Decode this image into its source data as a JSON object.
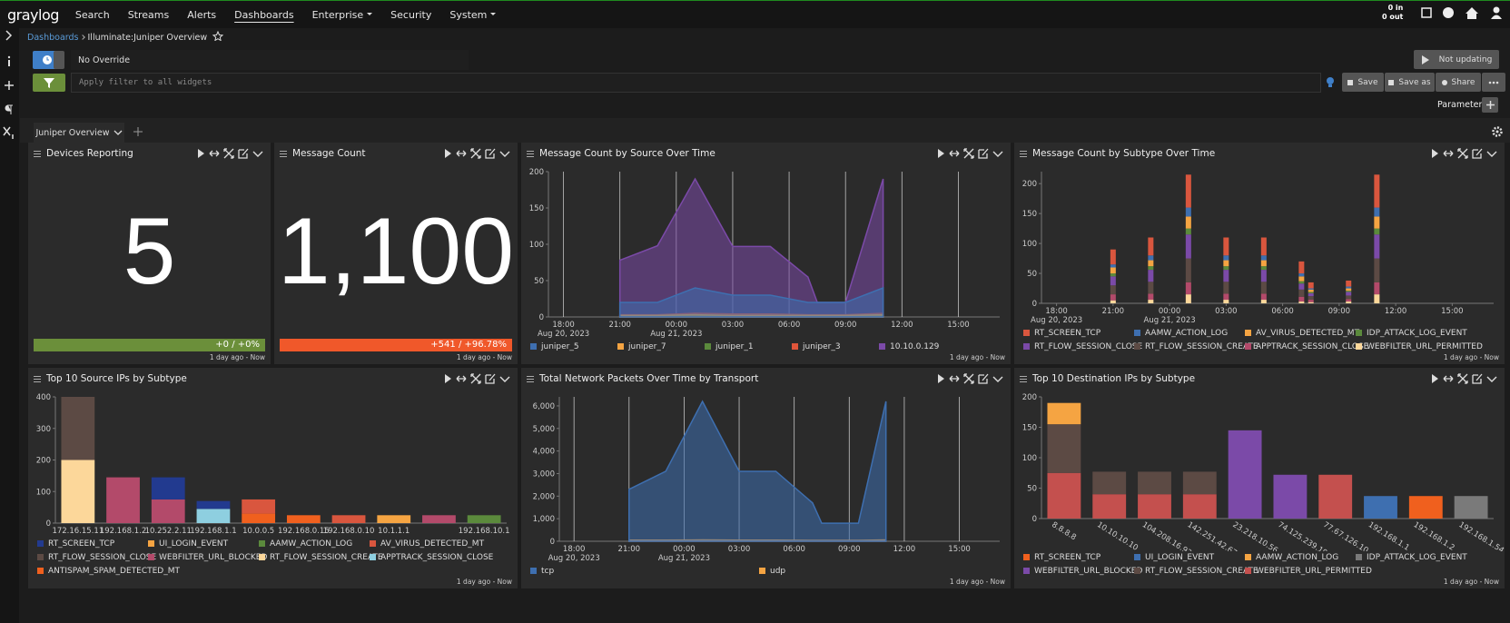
{
  "nav": {
    "logo": "graylog",
    "items": [
      "Search",
      "Streams",
      "Alerts",
      "Dashboards",
      "Enterprise",
      "Security",
      "System"
    ],
    "active": 3,
    "dropdown_items": [
      4,
      6
    ],
    "throughput_in": "0 in",
    "throughput_out": "0 out"
  },
  "breadcrumb": [
    "Dashboards",
    "Illuminate:Juniper Overview"
  ],
  "toolbar": {
    "override": "No Override",
    "filter_placeholder": "Apply filter to all widgets",
    "refresh": "Not updating",
    "save": "Save",
    "save_as": "Save as",
    "share": "Share",
    "parameters": "Parameters"
  },
  "tabs": [
    "Juniper Overview"
  ],
  "widgets": [
    {
      "title": "Devices Reporting",
      "type": "number",
      "value": 5,
      "trend": "+0 / +0%",
      "trend_color": "#6b8f3a",
      "footer": "1 day ago - Now"
    },
    {
      "title": "Message Count",
      "type": "number",
      "value": 1100,
      "value_label": "1,100",
      "trend": "+541 / +96.78%",
      "trend_color": "#f0582a",
      "footer": "1 day ago - Now"
    },
    {
      "title": "Message Count by Source Over Time",
      "type": "area",
      "grid": true,
      "x": [
        3,
        5,
        7,
        9,
        11,
        13,
        13.5,
        15,
        17
      ],
      "xlim": [
        -0.8,
        23.2
      ],
      "xticks": [
        {
          "value": 0,
          "label": "18:00"
        },
        {
          "value": 3,
          "label": "21:00"
        },
        {
          "value": 6,
          "label": "00:00"
        },
        {
          "value": 9,
          "label": "03:00"
        },
        {
          "value": 12,
          "label": "06:00"
        },
        {
          "value": 15,
          "label": "09:00"
        },
        {
          "value": 18,
          "label": "12:00"
        },
        {
          "value": 21,
          "label": "15:00"
        }
      ],
      "x_sublabels": [
        {
          "value": 0,
          "label": "Aug 20, 2023"
        },
        {
          "value": 6,
          "label": "Aug 21, 2023"
        }
      ],
      "ylim": [
        0,
        200
      ],
      "yticks": [
        0,
        50,
        100,
        150,
        200
      ],
      "series": [
        {
          "name": "juniper_5",
          "color": "#3e6fb0",
          "values": [
            20,
            20,
            40,
            30,
            30,
            20,
            20,
            20,
            40
          ]
        },
        {
          "name": "juniper_7",
          "color": "#f5a442",
          "values": [
            2,
            2,
            3,
            2,
            2,
            2,
            2,
            2,
            3
          ]
        },
        {
          "name": "juniper_1",
          "color": "#5b8a3c",
          "values": [
            1,
            1,
            1,
            1,
            1,
            1,
            1,
            1,
            1
          ]
        },
        {
          "name": "juniper_3",
          "color": "#e0553a",
          "values": [
            3,
            3,
            5,
            4,
            4,
            3,
            3,
            3,
            5
          ]
        },
        {
          "name": "10.10.0.129",
          "color": "#7b4aa8",
          "values": [
            78,
            98,
            190,
            97,
            97,
            55,
            20,
            20,
            190
          ]
        }
      ],
      "footer": "1 day ago - Now"
    },
    {
      "title": "Message Count by Subtype Over Time",
      "type": "time_bar",
      "grid": false,
      "x": [
        3,
        5,
        7,
        9,
        11,
        13,
        13.5,
        15.5,
        17
      ],
      "xlim": [
        -0.8,
        23.2
      ],
      "xticks": [
        {
          "value": 0,
          "label": "18:00"
        },
        {
          "value": 3,
          "label": "21:00"
        },
        {
          "value": 6,
          "label": "00:00"
        },
        {
          "value": 9,
          "label": "03:00"
        },
        {
          "value": 12,
          "label": "06:00"
        },
        {
          "value": 15,
          "label": "09:00"
        },
        {
          "value": 18,
          "label": "12:00"
        },
        {
          "value": 21,
          "label": "15:00"
        }
      ],
      "x_sublabels": [
        {
          "value": 0,
          "label": "Aug 20, 2023"
        },
        {
          "value": 6,
          "label": "Aug 21, 2023"
        }
      ],
      "ylim": [
        0,
        220
      ],
      "yticks": [
        0,
        50,
        100,
        150,
        200
      ],
      "series": [
        {
          "name": "RT_SCREEN_TCP",
          "color": "#d9563e",
          "values": [
            25,
            30,
            55,
            30,
            30,
            20,
            10,
            10,
            55
          ]
        },
        {
          "name": "AAMW_ACTION_LOG",
          "color": "#3e6fb0",
          "values": [
            5,
            8,
            15,
            8,
            8,
            5,
            2,
            3,
            15
          ]
        },
        {
          "name": "AV_VIRUS_DETECTED_MT",
          "color": "#f5a442",
          "values": [
            10,
            10,
            20,
            10,
            10,
            8,
            4,
            4,
            20
          ]
        },
        {
          "name": "IDP_ATTACK_LOG_EVENT",
          "color": "#5b8a3c",
          "values": [
            5,
            6,
            10,
            6,
            6,
            4,
            2,
            2,
            10
          ]
        },
        {
          "name": "RT_FLOW_SESSION_CLOSE",
          "color": "#7b4aa8",
          "values": [
            15,
            20,
            40,
            20,
            20,
            10,
            5,
            6,
            40
          ]
        },
        {
          "name": "RT_FLOW_SESSION_CREATE",
          "color": "#5c4a44",
          "values": [
            15,
            20,
            40,
            20,
            20,
            12,
            6,
            6,
            40
          ]
        },
        {
          "name": "APPTRACK_SESSION_CLOSE",
          "color": "#b34a6a",
          "values": [
            10,
            10,
            20,
            10,
            10,
            8,
            4,
            4,
            20
          ]
        },
        {
          "name": "WEBFILTER_URL_PERMITTED",
          "color": "#fcd79a",
          "values": [
            5,
            6,
            15,
            6,
            6,
            3,
            2,
            3,
            15
          ]
        }
      ],
      "footer": "1 day ago - Now"
    },
    {
      "title": "Top 10 Source IPs by Subtype",
      "type": "bar",
      "rotate_labels": false,
      "categories": [
        "172.16.15.11",
        "192.168.1.2",
        "10.252.2.11",
        "192.168.1.1",
        "10.0.0.5",
        "192.168.0.15",
        "192.168.0.10",
        "10.1.1.1",
        null,
        "192.168.10.1"
      ],
      "ylim": [
        0,
        400
      ],
      "yticks": [
        0,
        100,
        200,
        300,
        400
      ],
      "series": [
        {
          "name": "RT_SCREEN_TCP",
          "color": "#223a8f",
          "values": [
            0,
            0,
            70,
            25,
            0,
            0,
            0,
            0,
            0,
            0
          ]
        },
        {
          "name": "UI_LOGIN_EVENT",
          "color": "#f5a442",
          "values": [
            0,
            0,
            0,
            0,
            0,
            0,
            0,
            25,
            0,
            0
          ]
        },
        {
          "name": "AAMW_ACTION_LOG",
          "color": "#5b8a3c",
          "values": [
            0,
            0,
            0,
            0,
            0,
            0,
            0,
            0,
            0,
            25
          ]
        },
        {
          "name": "AV_VIRUS_DETECTED_MT",
          "color": "#d9563e",
          "values": [
            0,
            0,
            0,
            0,
            45,
            0,
            25,
            0,
            0,
            0
          ]
        },
        {
          "name": "RT_FLOW_SESSION_CLOSE",
          "color": "#5c4a44",
          "values": [
            200,
            0,
            0,
            0,
            0,
            0,
            0,
            0,
            0,
            0
          ]
        },
        {
          "name": "WEBFILTER_URL_BLOCKED",
          "color": "#b34a6a",
          "values": [
            0,
            145,
            75,
            0,
            0,
            0,
            0,
            0,
            25,
            0
          ]
        },
        {
          "name": "RT_FLOW_SESSION_CREATE",
          "color": "#fcd79a",
          "values": [
            200,
            0,
            0,
            0,
            0,
            0,
            0,
            0,
            0,
            0
          ]
        },
        {
          "name": "APPTRACK_SESSION_CLOSE",
          "color": "#8ecfe0",
          "values": [
            0,
            0,
            0,
            45,
            0,
            0,
            0,
            0,
            0,
            0
          ]
        },
        {
          "name": "ANTISPAM_SPAM_DETECTED_MT",
          "color": "#f0601e",
          "values": [
            0,
            0,
            0,
            0,
            30,
            25,
            0,
            0,
            0,
            0
          ]
        }
      ],
      "footer": "1 day ago - Now"
    },
    {
      "title": "Total Network Packets Over Time by Transport",
      "type": "area",
      "grid": true,
      "x": [
        3,
        5,
        7,
        9,
        11,
        13,
        13.5,
        15.5,
        17
      ],
      "xlim": [
        -0.8,
        23.2
      ],
      "xticks": [
        {
          "value": 0,
          "label": "18:00"
        },
        {
          "value": 3,
          "label": "21:00"
        },
        {
          "value": 6,
          "label": "00:00"
        },
        {
          "value": 9,
          "label": "03:00"
        },
        {
          "value": 12,
          "label": "06:00"
        },
        {
          "value": 15,
          "label": "09:00"
        },
        {
          "value": 18,
          "label": "12:00"
        },
        {
          "value": 21,
          "label": "15:00"
        }
      ],
      "x_sublabels": [
        {
          "value": 0,
          "label": "Aug 20, 2023"
        },
        {
          "value": 6,
          "label": "Aug 21, 2023"
        }
      ],
      "ylim": [
        0,
        6400
      ],
      "yticks": [
        0,
        {
          "value": 1000,
          "label": "1,000"
        },
        {
          "value": 2000,
          "label": "2,000"
        },
        {
          "value": 3000,
          "label": "3,000"
        },
        {
          "value": 4000,
          "label": "4,000"
        },
        {
          "value": 5000,
          "label": "5,000"
        },
        {
          "value": 6000,
          "label": "6,000"
        }
      ],
      "series": [
        {
          "name": "tcp",
          "color": "#3e6fb0",
          "values": [
            2300,
            3100,
            6200,
            3100,
            3100,
            1700,
            800,
            800,
            6200
          ]
        },
        {
          "name": "udp",
          "color": "#f5a442",
          "values": [
            50,
            50,
            60,
            50,
            50,
            40,
            40,
            40,
            60
          ]
        }
      ],
      "footer": "1 day ago - Now"
    },
    {
      "title": "Top 10 Destination IPs by Subtype",
      "type": "bar",
      "rotate_labels": true,
      "categories": [
        "8.8.8.8",
        "10.10.10.10",
        "104.208.16.93",
        "142.251.42.67",
        "23.218.10.56",
        "74.125.239.195",
        "77.67.126.10",
        "192.168.1.1",
        "192.168.1.2",
        "192.168.1.54"
      ],
      "ylim": [
        0,
        200
      ],
      "yticks": [
        0,
        50,
        100,
        150,
        200
      ],
      "series": [
        {
          "name": "RT_SCREEN_TCP",
          "color": "#f0601e",
          "values": [
            0,
            0,
            0,
            0,
            0,
            0,
            0,
            0,
            37,
            0
          ]
        },
        {
          "name": "UI_LOGIN_EVENT",
          "color": "#3e6fb0",
          "values": [
            0,
            0,
            0,
            0,
            0,
            0,
            0,
            37,
            0,
            0
          ]
        },
        {
          "name": "AAMW_ACTION_LOG",
          "color": "#f5a442",
          "values": [
            35,
            0,
            0,
            0,
            0,
            0,
            0,
            0,
            0,
            0
          ]
        },
        {
          "name": "IDP_ATTACK_LOG_EVENT",
          "color": "#7a7a7a",
          "values": [
            0,
            0,
            0,
            0,
            0,
            0,
            0,
            0,
            0,
            37
          ]
        },
        {
          "name": "WEBFILTER_URL_BLOCKED",
          "color": "#7b4aa8",
          "values": [
            0,
            0,
            0,
            0,
            145,
            72,
            0,
            0,
            0,
            0
          ]
        },
        {
          "name": "RT_FLOW_SESSION_CREATE",
          "color": "#5c4a44",
          "values": [
            80,
            37,
            37,
            37,
            0,
            0,
            0,
            0,
            0,
            0
          ]
        },
        {
          "name": "WEBFILTER_URL_PERMITTED",
          "color": "#c4504e",
          "values": [
            75,
            40,
            40,
            40,
            0,
            0,
            72,
            0,
            0,
            0
          ]
        }
      ],
      "footer": "1 day ago - Now"
    }
  ]
}
